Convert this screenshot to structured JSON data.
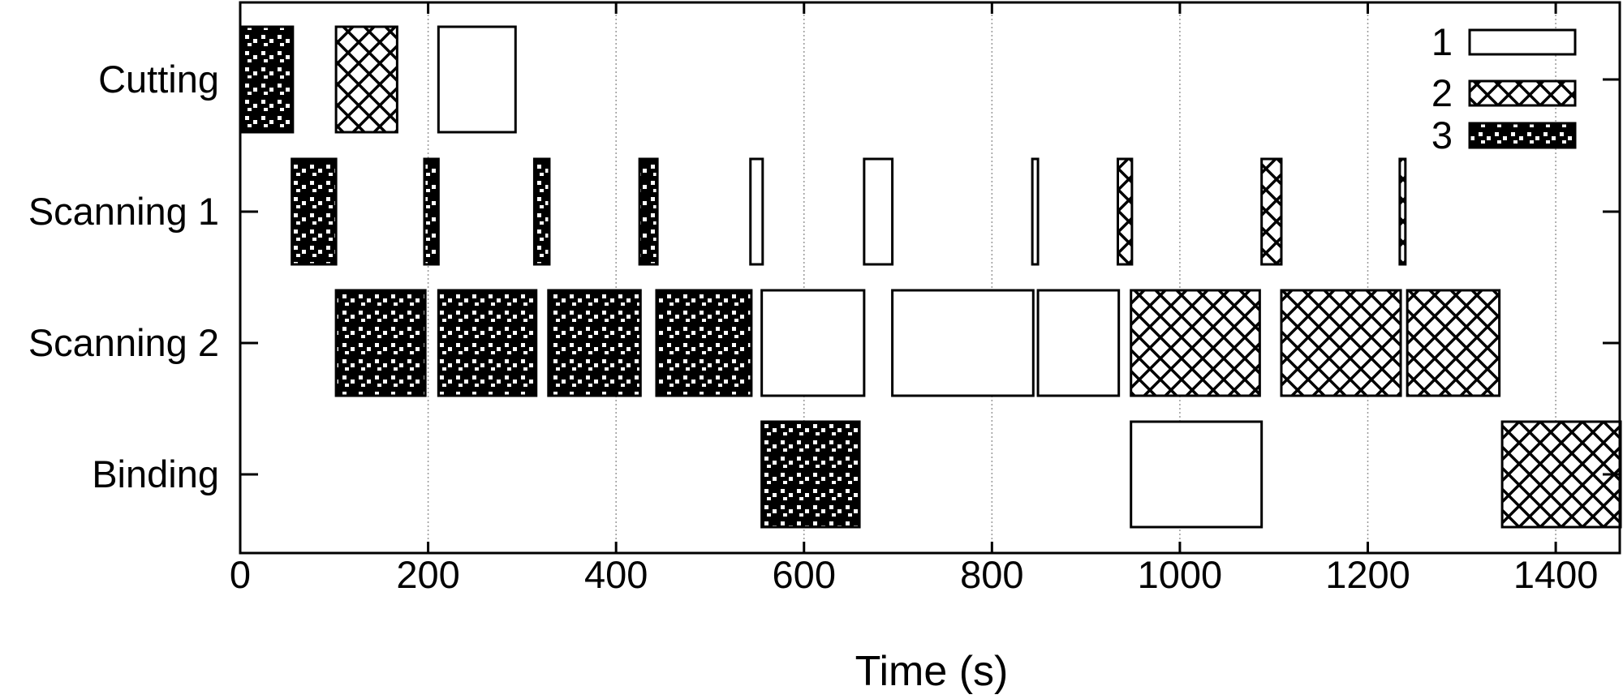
{
  "chart_data": {
    "type": "gantt",
    "title": "",
    "xlabel": "Time (s)",
    "ylabel": "",
    "xlim": [
      0,
      1469
    ],
    "xticks": [
      0,
      200,
      400,
      600,
      800,
      1000,
      1200,
      1400
    ],
    "grid": "vertical dotted at x ticks",
    "legend": {
      "placement": "top-right",
      "entries": [
        {
          "name": "1",
          "pattern": "empty"
        },
        {
          "name": "2",
          "pattern": "crosshatch"
        },
        {
          "name": "3",
          "pattern": "checker"
        }
      ]
    },
    "categories": [
      "Cutting",
      "Scanning 1",
      "Scanning 2",
      "Binding"
    ],
    "tasks": [
      {
        "row": "Cutting",
        "job": "3",
        "start": 0,
        "end": 56
      },
      {
        "row": "Cutting",
        "job": "2",
        "start": 102,
        "end": 167
      },
      {
        "row": "Cutting",
        "job": "1",
        "start": 211,
        "end": 293
      },
      {
        "row": "Scanning 1",
        "job": "3",
        "start": 55,
        "end": 102
      },
      {
        "row": "Scanning 1",
        "job": "3",
        "start": 196,
        "end": 211
      },
      {
        "row": "Scanning 1",
        "job": "3",
        "start": 313,
        "end": 329
      },
      {
        "row": "Scanning 1",
        "job": "3",
        "start": 425,
        "end": 444
      },
      {
        "row": "Scanning 1",
        "job": "1",
        "start": 543,
        "end": 556
      },
      {
        "row": "Scanning 1",
        "job": "1",
        "start": 664,
        "end": 694
      },
      {
        "row": "Scanning 1",
        "job": "1",
        "start": 843,
        "end": 849
      },
      {
        "row": "Scanning 1",
        "job": "2",
        "start": 934,
        "end": 949
      },
      {
        "row": "Scanning 1",
        "job": "2",
        "start": 1087,
        "end": 1108
      },
      {
        "row": "Scanning 1",
        "job": "2",
        "start": 1234,
        "end": 1240
      },
      {
        "row": "Scanning 2",
        "job": "3",
        "start": 102,
        "end": 197
      },
      {
        "row": "Scanning 2",
        "job": "3",
        "start": 211,
        "end": 315
      },
      {
        "row": "Scanning 2",
        "job": "3",
        "start": 328,
        "end": 426
      },
      {
        "row": "Scanning 2",
        "job": "3",
        "start": 443,
        "end": 544
      },
      {
        "row": "Scanning 2",
        "job": "1",
        "start": 555,
        "end": 664
      },
      {
        "row": "Scanning 2",
        "job": "1",
        "start": 694,
        "end": 844
      },
      {
        "row": "Scanning 2",
        "job": "1",
        "start": 849,
        "end": 935
      },
      {
        "row": "Scanning 2",
        "job": "2",
        "start": 948,
        "end": 1085
      },
      {
        "row": "Scanning 2",
        "job": "2",
        "start": 1108,
        "end": 1235
      },
      {
        "row": "Scanning 2",
        "job": "2",
        "start": 1242,
        "end": 1340
      },
      {
        "row": "Binding",
        "job": "3",
        "start": 555,
        "end": 659
      },
      {
        "row": "Binding",
        "job": "1",
        "start": 948,
        "end": 1087
      },
      {
        "row": "Binding",
        "job": "2",
        "start": 1343,
        "end": 1469
      }
    ]
  }
}
